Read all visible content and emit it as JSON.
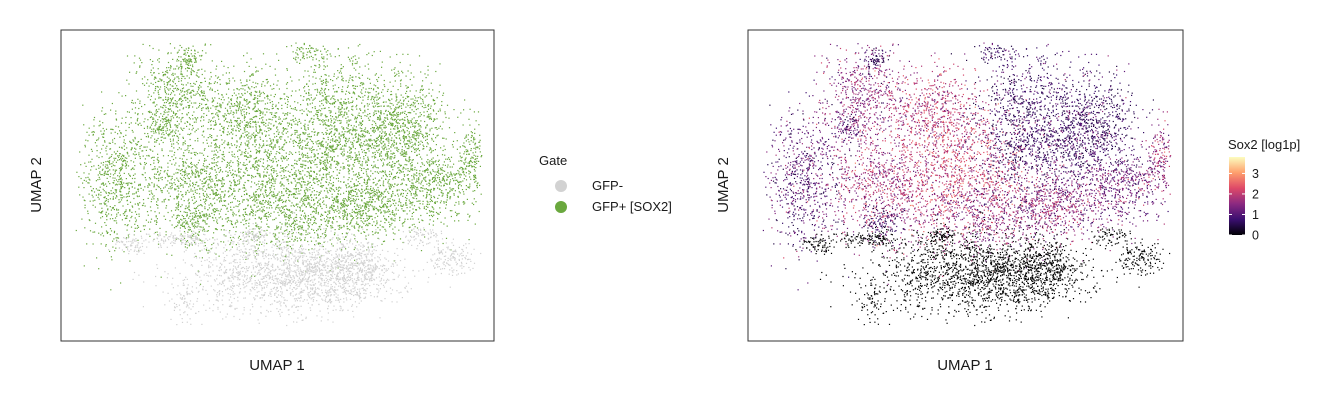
{
  "chart_data": [
    {
      "type": "scatter",
      "title": "",
      "xlabel": "UMAP 1",
      "ylabel": "UMAP 2",
      "color_by": "categorical",
      "legend": {
        "title": "Gate",
        "placement": "right",
        "entries": [
          {
            "label": "GFP-",
            "color": "#d2d2d2"
          },
          {
            "label": "GFP+ [SOX2]",
            "color": "#6aa83e"
          }
        ]
      },
      "ticks_shown": false,
      "grid": false
    },
    {
      "type": "scatter",
      "title": "",
      "xlabel": "UMAP 1",
      "ylabel": "UMAP 2",
      "color_by": "continuous",
      "colorbar": {
        "title": "Sox2 [log1p]",
        "placement": "right",
        "range": [
          0,
          3.8
        ],
        "ticks": [
          "0",
          "1",
          "2",
          "3"
        ],
        "palette": [
          "#000004",
          "#3b0f70",
          "#8c2981",
          "#de4968",
          "#fe9f6d",
          "#fcfdbf"
        ]
      },
      "ticks_shown": false,
      "grid": false
    }
  ]
}
